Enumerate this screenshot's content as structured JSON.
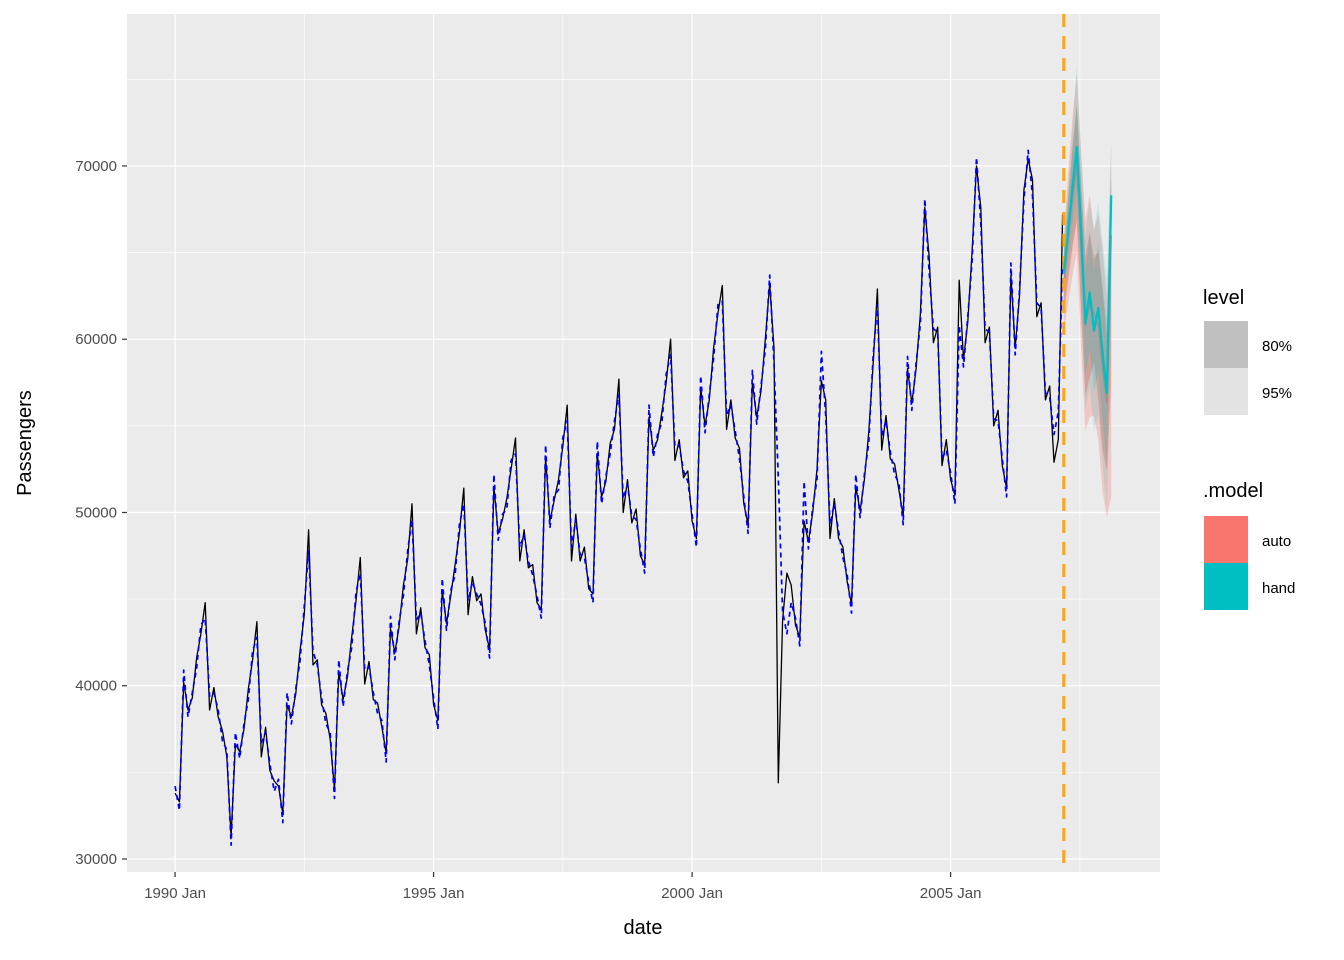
{
  "figure": {
    "panel_bg": "#EBEBEB",
    "grid_color": "#FFFFFF",
    "axis_text_color": "#4D4D4D",
    "xlabel": "date",
    "ylabel": "Passengers"
  },
  "legend": {
    "level": {
      "title": "level",
      "items": [
        {
          "label": "80%",
          "color": "#C0C0C0"
        },
        {
          "label": "95%",
          "color": "#E3E3E3"
        }
      ]
    },
    "model": {
      "title": ".model",
      "items": [
        {
          "label": "auto",
          "color": "#F8766D"
        },
        {
          "label": "hand",
          "color": "#00BFC4"
        }
      ]
    }
  },
  "chart_data": {
    "type": "line",
    "title": "",
    "xlabel": "date",
    "ylabel": "Passengers",
    "frequency": "monthly",
    "xlim": [
      1989.07,
      2009.05
    ],
    "ylim": [
      29250,
      78770
    ],
    "x_ticks": [
      {
        "date": 1990.0,
        "label": "1990 Jan"
      },
      {
        "date": 1995.0,
        "label": "1995 Jan"
      },
      {
        "date": 2000.0,
        "label": "2000 Jan"
      },
      {
        "date": 2005.0,
        "label": "2005 Jan"
      }
    ],
    "x_minor": [
      1992.5,
      1997.5,
      2002.5,
      2007.5
    ],
    "y_ticks": [
      30000,
      40000,
      50000,
      60000,
      70000
    ],
    "y_minor": [
      35000,
      45000,
      55000,
      65000,
      75000
    ],
    "colors": {
      "actual": "#000000",
      "fitted": "#0000EE",
      "forecast_origin": "#FFA510",
      "auto": "#F8766D",
      "hand": "#00BFC4"
    },
    "series_start": 1990.0,
    "actual": [
      33800,
      33300,
      40200,
      38600,
      39300,
      41600,
      43000,
      44800,
      38600,
      39900,
      38200,
      37400,
      35900,
      31300,
      36600,
      36200,
      37500,
      39800,
      41500,
      43700,
      35900,
      37600,
      35100,
      34500,
      34200,
      32600,
      38900,
      38200,
      39500,
      42000,
      44100,
      49000,
      41200,
      41500,
      38900,
      38400,
      36900,
      34000,
      40800,
      39200,
      40500,
      42800,
      44900,
      47400,
      40100,
      41400,
      39200,
      39000,
      37600,
      36100,
      43300,
      41900,
      43400,
      45800,
      47300,
      50500,
      43000,
      44500,
      42200,
      41800,
      38900,
      38000,
      45500,
      43600,
      45200,
      47000,
      48800,
      51400,
      44100,
      46300,
      44900,
      45300,
      43200,
      42100,
      51500,
      48800,
      49600,
      50800,
      52500,
      54300,
      47200,
      49000,
      46800,
      47000,
      44800,
      44400,
      53200,
      49500,
      50700,
      51900,
      53800,
      56200,
      47200,
      49900,
      47200,
      48000,
      45600,
      45300,
      53400,
      50900,
      51800,
      54000,
      54800,
      57700,
      50000,
      51900,
      49400,
      50200,
      47500,
      47000,
      55500,
      53600,
      54200,
      55800,
      57500,
      60000,
      53000,
      54200,
      52000,
      52400,
      49500,
      48500,
      57200,
      55000,
      56500,
      59500,
      61500,
      63100,
      54800,
      56500,
      54300,
      53700,
      50500,
      49300,
      57500,
      55500,
      57000,
      60000,
      63200,
      59500,
      34400,
      43800,
      46500,
      45800,
      43500,
      42800,
      49500,
      48300,
      50000,
      52500,
      57600,
      56500,
      48500,
      50800,
      48500,
      48000,
      46000,
      44700,
      51500,
      50100,
      51900,
      54600,
      58500,
      62900,
      53600,
      55600,
      53100,
      52800,
      51300,
      49800,
      58300,
      56300,
      58300,
      61500,
      67600,
      64800,
      59800,
      60700,
      52700,
      54200,
      51900,
      51000,
      63400,
      58800,
      61000,
      65200,
      70000,
      67600,
      59800,
      60700,
      55000,
      55900,
      52700,
      51400,
      63700,
      59500,
      62500,
      68600,
      70400,
      69200,
      61300,
      62100,
      56500,
      57300,
      52900,
      54200,
      67200
    ],
    "fitted": [
      34200,
      32800,
      40900,
      38200,
      39600,
      41000,
      43500,
      43900,
      39400,
      39600,
      38600,
      36800,
      36300,
      30800,
      37300,
      35800,
      37800,
      39200,
      42000,
      42800,
      36700,
      37300,
      35500,
      33900,
      34600,
      32100,
      39600,
      37800,
      39800,
      41400,
      44600,
      47800,
      42000,
      41200,
      39300,
      37800,
      37300,
      33500,
      41500,
      38800,
      40800,
      42200,
      45400,
      46500,
      40900,
      41100,
      39600,
      38400,
      38000,
      35600,
      44000,
      41500,
      43700,
      45200,
      47800,
      49600,
      43800,
      44200,
      42600,
      41200,
      39300,
      37500,
      46200,
      43200,
      45500,
      46400,
      49300,
      50500,
      44900,
      46000,
      45300,
      44700,
      43600,
      41600,
      52200,
      48400,
      49900,
      50200,
      53000,
      53400,
      48000,
      48700,
      47200,
      46400,
      45200,
      43900,
      53900,
      49100,
      51000,
      51300,
      54300,
      55300,
      48000,
      49600,
      47600,
      47400,
      46000,
      44800,
      54100,
      50500,
      52100,
      53400,
      55300,
      56800,
      50800,
      51600,
      49800,
      49600,
      47900,
      46500,
      56200,
      53200,
      54500,
      55200,
      58000,
      59100,
      53800,
      53900,
      52400,
      51800,
      49900,
      48000,
      57900,
      54600,
      56800,
      58900,
      62000,
      62200,
      55600,
      56200,
      54700,
      53100,
      50900,
      48800,
      58200,
      55100,
      57300,
      59400,
      63700,
      58600,
      52000,
      44300,
      43000,
      44800,
      43900,
      42300,
      51800,
      47900,
      50300,
      51900,
      59300,
      55600,
      49300,
      50500,
      48900,
      47400,
      46400,
      44200,
      52200,
      49700,
      52200,
      54000,
      59000,
      62000,
      54400,
      55300,
      53500,
      52200,
      51700,
      49300,
      59000,
      55900,
      58600,
      60900,
      68100,
      63900,
      60600,
      60400,
      53100,
      53600,
      52300,
      50500,
      60800,
      58400,
      61300,
      64600,
      70500,
      66700,
      60600,
      60400,
      55400,
      55300,
      53100,
      50900,
      64400,
      59100,
      62800,
      68000,
      70900,
      68300,
      62100,
      61800,
      56900,
      56700,
      54500,
      55800,
      64500
    ],
    "forecast_start": 2007.19,
    "forecast": {
      "dates": [
        2007.19,
        2007.273,
        2007.357,
        2007.44,
        2007.523,
        2007.607,
        2007.69,
        2007.773,
        2007.857,
        2007.94,
        2008.023,
        2008.107
      ],
      "auto": {
        "mean": [
          63200,
          65800,
          68200,
          70100,
          65200,
          60800,
          62000,
          61500,
          60800,
          58200,
          56300,
          66000
        ],
        "lo80": [
          61400,
          63400,
          65300,
          66800,
          61500,
          56800,
          57800,
          58700,
          56500,
          53600,
          52400,
          57500
        ],
        "hi80": [
          65000,
          68200,
          71100,
          73400,
          68900,
          64800,
          66200,
          64700,
          65100,
          62800,
          60200,
          69200
        ],
        "lo95": [
          60400,
          62100,
          63700,
          65000,
          59500,
          54700,
          55500,
          55600,
          54200,
          51200,
          49700,
          50900
        ],
        "hi95": [
          65900,
          69600,
          72800,
          75300,
          70800,
          66900,
          68300,
          66300,
          67200,
          65100,
          62400,
          71200
        ]
      },
      "hand": {
        "mean": [
          63800,
          66200,
          68800,
          71100,
          66300,
          60900,
          62700,
          60500,
          61800,
          59200,
          56900,
          68300
        ],
        "lo80": [
          62700,
          64600,
          66700,
          68600,
          63500,
          57900,
          59400,
          57000,
          58100,
          55300,
          52800,
          64000
        ],
        "hi80": [
          64900,
          67800,
          70900,
          73600,
          69100,
          63900,
          66000,
          64000,
          65500,
          63100,
          61000,
          69500
        ],
        "lo95": [
          62000,
          63500,
          65400,
          67100,
          61800,
          55900,
          57300,
          54700,
          55700,
          52800,
          50200,
          61400
        ],
        "hi95": [
          65600,
          68900,
          72200,
          75900,
          70800,
          65900,
          68100,
          66300,
          67900,
          65600,
          63600,
          71500
        ]
      },
      "levels": [
        80,
        95
      ]
    }
  }
}
